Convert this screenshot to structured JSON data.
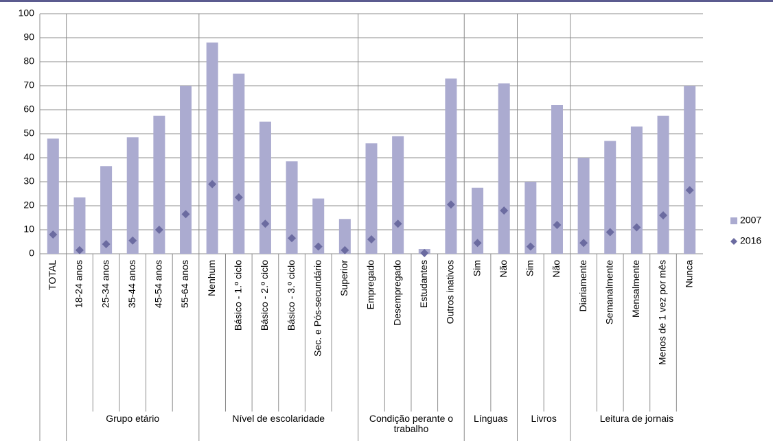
{
  "chart_data": {
    "type": "bar-scatter",
    "category_groups": [
      {
        "label": null,
        "categories": [
          "TOTAL"
        ]
      },
      {
        "label": "Grupo etário",
        "categories": [
          "18-24 anos",
          "25-34 anos",
          "35-44 anos",
          "45-54 anos",
          "55-64 anos"
        ]
      },
      {
        "label": "Nível de escolaridade",
        "categories": [
          "Nenhum",
          "Básico - 1.º ciclo",
          "Básico - 2.º ciclo",
          "Básico - 3.º ciclo",
          "Sec. e Pós-secundário",
          "Superior"
        ]
      },
      {
        "label": "Condição perante o trabalho",
        "categories": [
          "Empregado",
          "Desempregado",
          "Estudantes",
          "Outros inativos"
        ]
      },
      {
        "label": "Línguas",
        "categories": [
          "Sim",
          "Não"
        ]
      },
      {
        "label": "Livros",
        "categories": [
          "Sim",
          "Não"
        ]
      },
      {
        "label": "Leitura de jornais",
        "categories": [
          "Diariamente",
          "Semanalmente",
          "Mensalmente",
          "Menos de 1 vez por mês",
          "Nunca"
        ]
      }
    ],
    "series": [
      {
        "name": "2007",
        "mark": "bar",
        "color": "#ababd0",
        "values": [
          48,
          23.5,
          36.5,
          48.5,
          57.5,
          70,
          88,
          75,
          55,
          38.5,
          23,
          14.5,
          46,
          49,
          2,
          73,
          27.5,
          71,
          30,
          62,
          40,
          47,
          53,
          57.5,
          70
        ]
      },
      {
        "name": "2016",
        "mark": "diamond",
        "color": "#6b6ba0",
        "values": [
          8,
          1.5,
          4,
          5.5,
          10,
          16.5,
          29,
          23.5,
          12.5,
          6.5,
          3,
          1.5,
          6,
          12.5,
          0.3,
          20.5,
          4.5,
          18,
          3,
          12,
          4.5,
          9,
          11,
          16,
          26.5
        ]
      }
    ],
    "ylim": [
      0,
      100
    ],
    "yticks": [
      0,
      10,
      20,
      30,
      40,
      50,
      60,
      70,
      80,
      90,
      100
    ],
    "grid": true,
    "legend": "right"
  }
}
